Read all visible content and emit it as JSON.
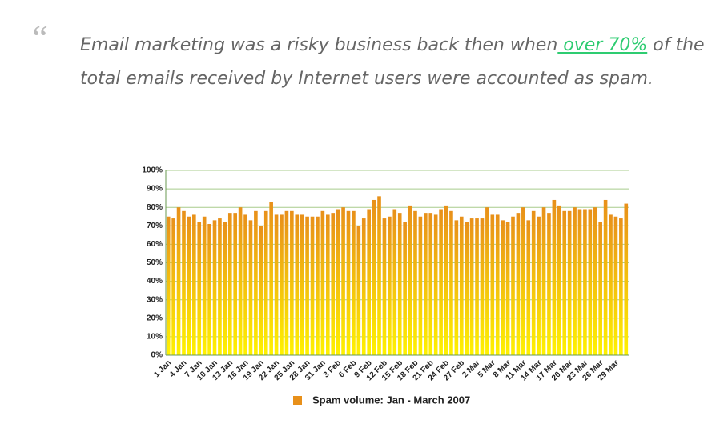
{
  "quote": {
    "mark": "“",
    "before": "Email marketing was a risky business back then when",
    "link": " over 70%",
    "after": " of the total emails received by Internet users were accounted as spam."
  },
  "chart_data": {
    "type": "bar",
    "categories": [
      "1 Jan",
      null,
      null,
      "4 Jan",
      null,
      null,
      "7 Jan",
      null,
      null,
      "10 Jan",
      null,
      null,
      "13 Jan",
      null,
      null,
      "16 Jan",
      null,
      null,
      "19 Jan",
      null,
      null,
      "22 Jan",
      null,
      null,
      "25 Jan",
      null,
      null,
      "28 Jan",
      null,
      null,
      "31 Jan",
      null,
      null,
      "3 Feb",
      null,
      null,
      "6 Feb",
      null,
      null,
      "9 Feb",
      null,
      null,
      "12 Feb",
      null,
      null,
      "15 Feb",
      null,
      null,
      "18 Feb",
      null,
      null,
      "21 Feb",
      null,
      null,
      "24 Feb",
      null,
      null,
      "27 Feb",
      null,
      null,
      "2 Mar",
      null,
      null,
      "5 Mar",
      null,
      null,
      "8 Mar",
      null,
      null,
      "11 Mar",
      null,
      null,
      "14 Mar",
      null,
      null,
      "17 Mar",
      null,
      null,
      "20 Mar",
      null,
      null,
      "23 Mar",
      null,
      null,
      "26 Mar",
      null,
      null,
      "29 Mar",
      null,
      null
    ],
    "series": [
      {
        "name": "Spam volume: Jan - March 2007",
        "color": "#e8901a",
        "values": [
          75,
          74,
          80,
          78,
          75,
          76,
          72,
          75,
          71,
          73,
          74,
          72,
          77,
          77,
          80,
          76,
          73,
          78,
          70,
          78,
          83,
          76,
          76,
          78,
          78,
          76,
          76,
          75,
          75,
          75,
          78,
          76,
          77,
          79,
          80,
          78,
          78,
          70,
          74,
          79,
          84,
          86,
          74,
          75,
          79,
          77,
          72,
          81,
          78,
          75,
          77,
          77,
          76,
          79,
          81,
          78,
          73,
          75,
          72,
          74,
          74,
          74,
          80,
          76,
          76,
          73,
          72,
          75,
          77,
          80,
          73,
          78,
          75,
          80,
          77,
          84,
          81,
          78,
          78,
          80,
          79,
          79,
          79,
          80,
          72,
          84,
          76,
          75,
          74,
          82
        ]
      }
    ],
    "ylim": [
      0,
      100
    ],
    "yticks": [
      {
        "value": 0,
        "label": "0%"
      },
      {
        "value": 10,
        "label": "10%"
      },
      {
        "value": 20,
        "label": "20%"
      },
      {
        "value": 30,
        "label": "30%"
      },
      {
        "value": 40,
        "label": "40%"
      },
      {
        "value": 50,
        "label": "50%"
      },
      {
        "value": 60,
        "label": "60%"
      },
      {
        "value": 70,
        "label": "70%"
      },
      {
        "value": 80,
        "label": "80%"
      },
      {
        "value": 90,
        "label": "90%"
      },
      {
        "value": 100,
        "label": "100%"
      }
    ],
    "grid": true,
    "legend": "bottom"
  }
}
